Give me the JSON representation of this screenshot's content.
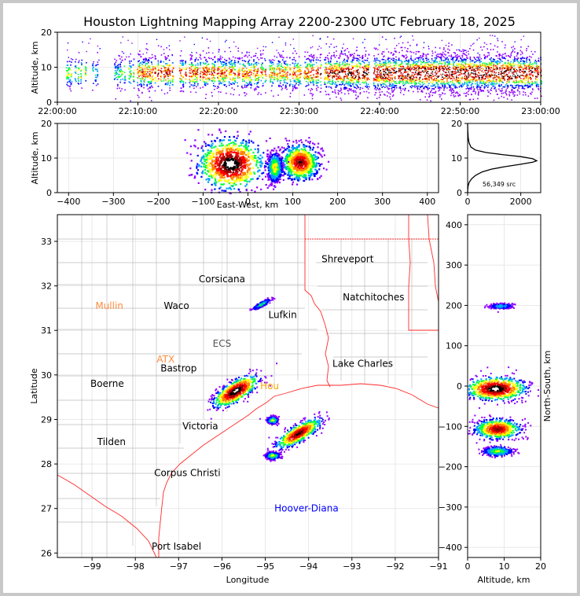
{
  "figure_title": "Houston Lightning Mapping Array 2200-2300 UTC February 18, 2025",
  "chart_data": [
    {
      "panel": "altitude-vs-time",
      "type": "scatter",
      "title": "Houston Lightning Mapping Array 2200-2300 UTC February 18, 2025",
      "xlabel": "",
      "ylabel": "Altitude, km",
      "xlim": [
        "22:00:00",
        "23:00:00"
      ],
      "ylim": [
        0,
        20
      ],
      "xticks": [
        "22:00:00",
        "22:10:00",
        "22:20:00",
        "22:30:00",
        "22:40:00",
        "22:50:00",
        "23:00:00"
      ],
      "yticks": [
        0,
        10,
        20
      ],
      "density_profile": [
        {
          "t": 1,
          "level": 0.5
        },
        {
          "t": 2,
          "level": 0.4
        },
        {
          "t": 3,
          "level": 0.6
        },
        {
          "t": 4,
          "level": 0.4
        },
        {
          "t": 5,
          "level": 0.3
        },
        {
          "t": 7,
          "level": 0.35
        },
        {
          "t": 9,
          "level": 0.5
        },
        {
          "t": 10,
          "level": 0.7
        },
        {
          "t": 12,
          "level": 0.75
        },
        {
          "t": 14,
          "level": 0.8
        },
        {
          "t": 16,
          "level": 0.7
        },
        {
          "t": 18,
          "level": 0.75
        },
        {
          "t": 20,
          "level": 0.7
        },
        {
          "t": 22,
          "level": 0.65
        },
        {
          "t": 24,
          "level": 0.7
        },
        {
          "t": 26,
          "level": 0.6
        },
        {
          "t": 28,
          "level": 0.65
        },
        {
          "t": 30,
          "level": 0.7
        },
        {
          "t": 32,
          "level": 0.75
        },
        {
          "t": 34,
          "level": 0.85
        },
        {
          "t": 36,
          "level": 0.9
        },
        {
          "t": 38,
          "level": 0.9
        },
        {
          "t": 40,
          "level": 0.95
        },
        {
          "t": 42,
          "level": 0.95
        },
        {
          "t": 44,
          "level": 0.95
        },
        {
          "t": 46,
          "level": 1.0
        },
        {
          "t": 48,
          "level": 1.0
        },
        {
          "t": 50,
          "level": 0.95
        },
        {
          "t": 52,
          "level": 0.95
        },
        {
          "t": 54,
          "level": 1.0
        },
        {
          "t": 56,
          "level": 1.0
        },
        {
          "t": 58,
          "level": 0.95
        },
        {
          "t": 59.5,
          "level": 0.9
        }
      ]
    },
    {
      "panel": "altitude-vs-east-west",
      "type": "scatter",
      "xlabel": "East-West, km",
      "ylabel": "Altitude, km",
      "xlim": [
        -425,
        425
      ],
      "ylim": [
        0,
        20
      ],
      "xticks": [
        -400,
        -300,
        -200,
        -100,
        0,
        100,
        200,
        300,
        400
      ],
      "yticks": [
        0,
        10,
        20
      ],
      "clusters": [
        {
          "x": -40,
          "z": 8.5,
          "sx": 35,
          "sz": 3.5,
          "peak": 1.0
        },
        {
          "x": 115,
          "z": 9.0,
          "sx": 20,
          "sz": 2.5,
          "peak": 0.85
        },
        {
          "x": 58,
          "z": 7.5,
          "sx": 8,
          "sz": 2.0,
          "peak": 0.55
        }
      ]
    },
    {
      "panel": "altitude-histogram",
      "type": "line",
      "xlim": [
        0,
        2750
      ],
      "ylim": [
        0,
        20
      ],
      "xticks": [
        0,
        2000
      ],
      "yticks": [
        0,
        10,
        20
      ],
      "annotation": "56,349 src",
      "x": [
        0,
        5,
        20,
        60,
        150,
        300,
        550,
        900,
        1400,
        2000,
        2450,
        2600,
        2450,
        2000,
        1300,
        700,
        300,
        120,
        50,
        20,
        5,
        0
      ],
      "y": [
        0,
        1,
        2,
        3,
        4,
        5,
        6,
        6.8,
        7.5,
        8.2,
        8.8,
        9.2,
        9.8,
        10.4,
        11,
        11.6,
        12.3,
        13.2,
        14.5,
        16,
        18,
        20
      ]
    },
    {
      "panel": "plan-view-map",
      "type": "scatter",
      "xlabel": "Longitude",
      "ylabel": "Latitude",
      "xlim": [
        -99.8,
        -91
      ],
      "ylim": [
        25.9,
        33.6
      ],
      "xticks": [
        -99,
        -98,
        -97,
        -96,
        -95,
        -94,
        -93,
        -92,
        -91
      ],
      "yticks": [
        26,
        27,
        28,
        29,
        30,
        31,
        32,
        33
      ],
      "clusters": [
        {
          "lon": -95.7,
          "lat": 29.65,
          "slon": 0.25,
          "slat": 0.12,
          "peak": 1.0
        },
        {
          "lon": -94.25,
          "lat": 28.7,
          "slon": 0.25,
          "slat": 0.1,
          "peak": 0.9
        },
        {
          "lon": -94.85,
          "lat": 29.0,
          "slon": 0.06,
          "slat": 0.04,
          "peak": 0.5
        },
        {
          "lon": -94.85,
          "lat": 28.2,
          "slon": 0.08,
          "slat": 0.04,
          "peak": 0.5
        },
        {
          "lon": -95.1,
          "lat": 31.6,
          "slon": 0.1,
          "slat": 0.03,
          "peak": 0.4
        }
      ],
      "labels": [
        {
          "text": "Shreveport",
          "lon": -93.1,
          "lat": 32.6,
          "color": "#000000"
        },
        {
          "text": "Corsicana",
          "lon": -96.0,
          "lat": 32.15,
          "color": "#000000"
        },
        {
          "text": "Natchitoches",
          "lon": -92.5,
          "lat": 31.75,
          "color": "#000000"
        },
        {
          "text": "Mullin",
          "lon": -98.6,
          "lat": 31.55,
          "color": "#ff8c40"
        },
        {
          "text": "Waco",
          "lon": -97.05,
          "lat": 31.55,
          "color": "#000000"
        },
        {
          "text": "Lufkin",
          "lon": -94.6,
          "lat": 31.35,
          "color": "#000000"
        },
        {
          "text": "ECS",
          "lon": -96.0,
          "lat": 30.7,
          "color": "#555555"
        },
        {
          "text": "ATX",
          "lon": -97.3,
          "lat": 30.35,
          "color": "#ff8c40"
        },
        {
          "text": "Lake Charles",
          "lon": -92.75,
          "lat": 30.25,
          "color": "#000000"
        },
        {
          "text": "Bastrop",
          "lon": -97.0,
          "lat": 30.15,
          "color": "#000000"
        },
        {
          "text": "Boerne",
          "lon": -98.65,
          "lat": 29.8,
          "color": "#000000"
        },
        {
          "text": "Hou",
          "lon": -94.9,
          "lat": 29.75,
          "color": "#ffa500"
        },
        {
          "text": "Victoria",
          "lon": -96.5,
          "lat": 28.85,
          "color": "#000000"
        },
        {
          "text": "Tilden",
          "lon": -98.55,
          "lat": 28.5,
          "color": "#000000"
        },
        {
          "text": "Corpus Christi",
          "lon": -96.8,
          "lat": 27.8,
          "color": "#000000"
        },
        {
          "text": "Hoover-Diana",
          "lon": -94.05,
          "lat": 27.0,
          "color": "#0000ff"
        },
        {
          "text": "Port Isabel",
          "lon": -97.05,
          "lat": 26.15,
          "color": "#000000"
        }
      ]
    },
    {
      "panel": "north-south-vs-altitude",
      "type": "scatter",
      "xlabel": "Altitude, km",
      "ylabel": "North-South, km",
      "xlim": [
        0,
        20
      ],
      "ylim": [
        -425,
        425
      ],
      "xticks": [
        0,
        10,
        20
      ],
      "yticks": [
        -400,
        -300,
        -200,
        -100,
        0,
        100,
        200,
        300,
        400
      ],
      "clusters": [
        {
          "z": 7.5,
          "y": -5,
          "sz": 4.0,
          "sy": 14,
          "peak": 1.0
        },
        {
          "z": 8.0,
          "y": -105,
          "sz": 3.0,
          "sy": 12,
          "peak": 0.85
        },
        {
          "z": 8.0,
          "y": -160,
          "sz": 2.0,
          "sy": 6,
          "peak": 0.45
        },
        {
          "z": 9.0,
          "y": 200,
          "sz": 1.5,
          "sy": 3,
          "peak": 0.35
        }
      ]
    }
  ]
}
